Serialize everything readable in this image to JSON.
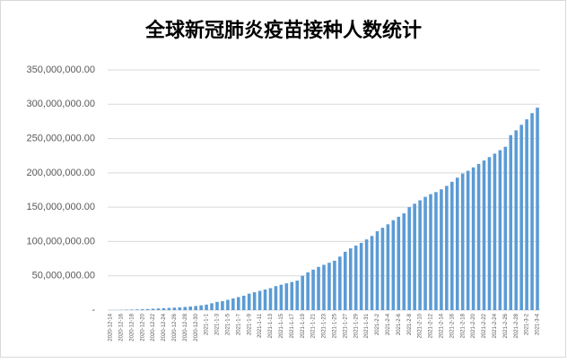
{
  "chart_data": {
    "type": "bar",
    "title": "全球新冠肺炎疫苗接种人数统计",
    "categories": [
      "2020-12-14",
      null,
      "2020-12-16",
      null,
      "2020-12-18",
      null,
      "2020-12-20",
      null,
      "2020-12-22",
      null,
      "2020-12-24",
      null,
      "2020-12-26",
      null,
      "2020-12-28",
      null,
      "2020-12-30",
      null,
      "2021-1-1",
      null,
      "2021-1-3",
      null,
      "2021-1-5",
      null,
      "2021-1-7",
      null,
      "2021-1-9",
      null,
      "2021-1-11",
      null,
      "2021-1-13",
      null,
      "2021-1-15",
      null,
      "2021-1-17",
      null,
      "2021-1-19",
      null,
      "2021-1-21",
      null,
      "2021-1-23",
      null,
      "2021-1-25",
      null,
      "2021-1-27",
      null,
      "2021-1-29",
      null,
      "2021-1-31",
      null,
      "2021-2-2",
      null,
      "2021-2-4",
      null,
      "2021-2-6",
      null,
      "2021-2-8",
      null,
      "2021-2-10",
      null,
      "2021-2-12",
      null,
      "2021-2-14",
      null,
      "2021-2-16",
      null,
      "2021-2-18",
      null,
      "2021-2-20",
      null,
      "2021-2-22",
      null,
      "2021-2-24",
      null,
      "2021-2-26",
      null,
      "2021-2-28",
      null,
      "2021-3-2",
      null,
      "2021-3-4"
    ],
    "values": [
      100000,
      200000,
      400000,
      600000,
      800000,
      1000000,
      1300000,
      1600000,
      2000000,
      2400000,
      2800000,
      3200000,
      3600000,
      4000000,
      4600000,
      5200000,
      6000000,
      7000000,
      8000000,
      10000000,
      12000000,
      13000000,
      15000000,
      17000000,
      19000000,
      21000000,
      24000000,
      26000000,
      28000000,
      30000000,
      32000000,
      35000000,
      37000000,
      39000000,
      41000000,
      43000000,
      50000000,
      55000000,
      59000000,
      63000000,
      66000000,
      69000000,
      72000000,
      78000000,
      85000000,
      90000000,
      94000000,
      98000000,
      103000000,
      108000000,
      115000000,
      120000000,
      125000000,
      131000000,
      136000000,
      141000000,
      150000000,
      155000000,
      160000000,
      165000000,
      169000000,
      172000000,
      176000000,
      181000000,
      187000000,
      193000000,
      199000000,
      203000000,
      208000000,
      213000000,
      218000000,
      223000000,
      228000000,
      233000000,
      238000000,
      255000000,
      262000000,
      270000000,
      278000000,
      287000000,
      295000000
    ],
    "color": "#5b9bd5",
    "ylim": [
      0,
      350000000
    ],
    "yticks": [
      {
        "value": 0,
        "label": "-"
      },
      {
        "value": 50000000,
        "label": "50,000,000.00"
      },
      {
        "value": 100000000,
        "label": "100,000,000.00"
      },
      {
        "value": 150000000,
        "label": "150,000,000.00"
      },
      {
        "value": 200000000,
        "label": "200,000,000.00"
      },
      {
        "value": 250000000,
        "label": "250,000,000.00"
      },
      {
        "value": 300000000,
        "label": "300,000,000.00"
      },
      {
        "value": 350000000,
        "label": "350,000,000.00"
      }
    ],
    "grid": true
  }
}
